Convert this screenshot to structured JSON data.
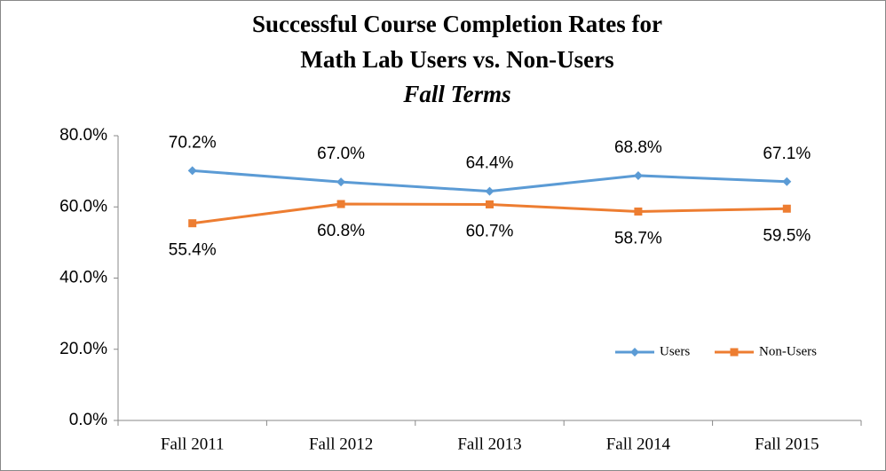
{
  "chart_data": {
    "type": "line",
    "title": [
      "Successful Course Completion Rates for",
      "Math Lab Users vs. Non-Users"
    ],
    "subtitle": "Fall Terms",
    "categories": [
      "Fall 2011",
      "Fall 2012",
      "Fall 2013",
      "Fall 2014",
      "Fall 2015"
    ],
    "series": [
      {
        "name": "Users",
        "color": "#5b9bd5",
        "marker": "diamond",
        "values": [
          70.2,
          67.0,
          64.4,
          68.8,
          67.1
        ],
        "value_labels": [
          "70.2%",
          "67.0%",
          "64.4%",
          "68.8%",
          "67.1%"
        ]
      },
      {
        "name": "Non-Users",
        "color": "#ed7d31",
        "marker": "square",
        "values": [
          55.4,
          60.8,
          60.7,
          58.7,
          59.5
        ],
        "value_labels": [
          "55.4%",
          "60.8%",
          "60.7%",
          "58.7%",
          "59.5%"
        ]
      }
    ],
    "ylim": [
      0,
      80
    ],
    "yticks": [
      {
        "value": 0,
        "label": "0.0%"
      },
      {
        "value": 20,
        "label": "20.0%"
      },
      {
        "value": 40,
        "label": "40.0%"
      },
      {
        "value": 60,
        "label": "60.0%"
      },
      {
        "value": 80,
        "label": "80.0%"
      }
    ],
    "grid": false,
    "legend": "lower right"
  }
}
